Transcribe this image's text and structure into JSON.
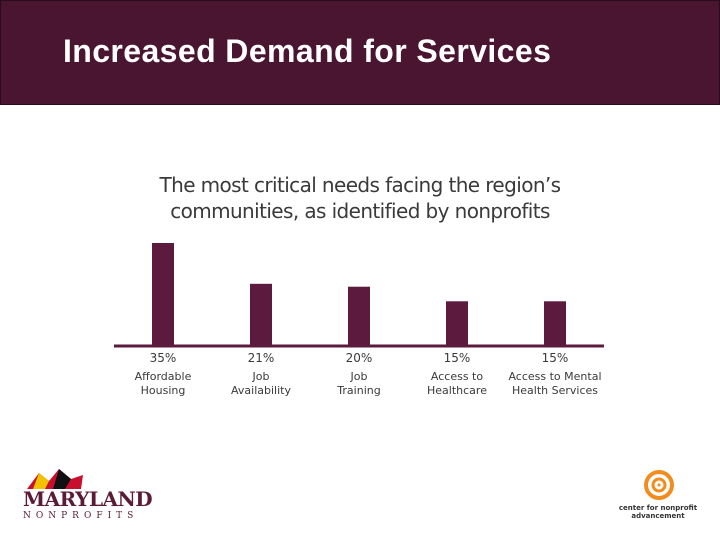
{
  "page": {
    "title": "Increased Demand for Services"
  },
  "colors": {
    "title_bar": "#4a1530",
    "bar": "#5b1a3e",
    "axis": "#5b1a3e",
    "text": "#3a3a3a",
    "logo_orange": "#f28c1e",
    "logo_maroon": "#5b1a36"
  },
  "chart_data": {
    "type": "bar",
    "title": "The most critical needs facing the region's communities, as identified by nonprofits",
    "title_lines": [
      "The most critical needs facing the region’s",
      "communities, as identified by nonprofits"
    ],
    "categories": [
      "Affordable Housing",
      "Job Availability",
      "Job Training",
      "Access to Healthcare",
      "Access to Mental Health Services"
    ],
    "category_lines": [
      [
        "Affordable",
        "Housing"
      ],
      [
        "Job",
        "Availability"
      ],
      [
        "Job",
        "Training"
      ],
      [
        "Access to",
        "Healthcare"
      ],
      [
        "Access to Mental",
        "Health Services"
      ]
    ],
    "values": [
      35,
      21,
      20,
      15,
      15
    ],
    "value_labels": [
      "35%",
      "21%",
      "20%",
      "15%",
      "15%"
    ],
    "xlabel": "",
    "ylabel": "",
    "ylim": [
      0,
      35
    ],
    "grid": false,
    "legend": "none"
  },
  "logos": {
    "maryland": {
      "word": "MARYLAND",
      "sub": "NONPROFITS",
      "icon": "maryland-flag-icon"
    },
    "cna": {
      "lines": [
        "center for nonprofit",
        "advancement"
      ],
      "icon": "spiral-icon"
    }
  }
}
